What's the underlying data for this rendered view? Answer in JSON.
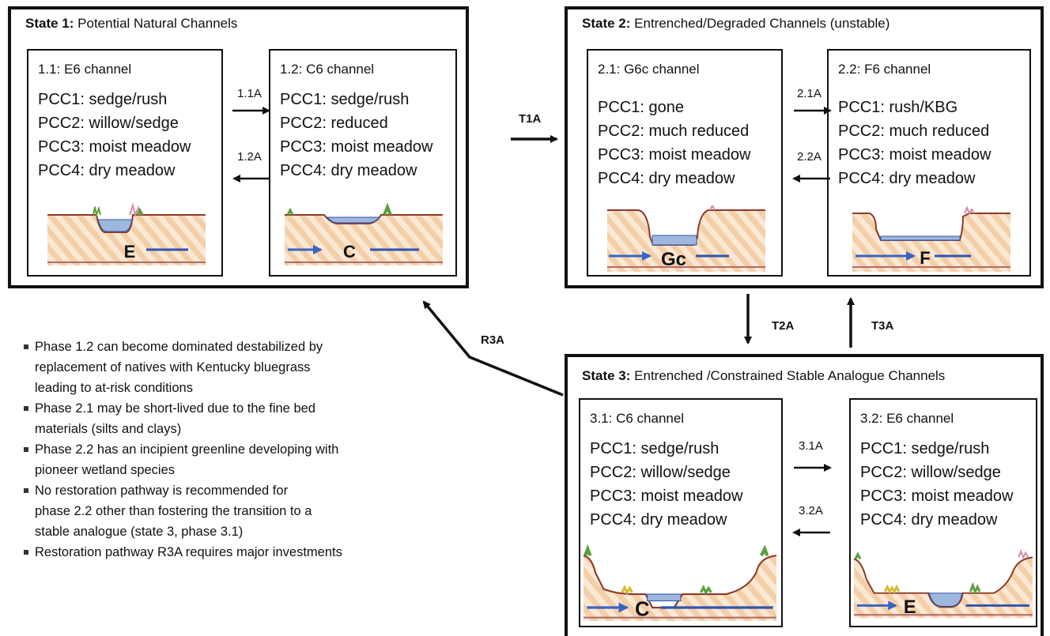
{
  "states": [
    {
      "id": "1",
      "title_bold": "State 1:",
      "title_rest": " Potential Natural Channels"
    },
    {
      "id": "2",
      "title_bold": "State 2:",
      "title_rest": " Entrenched/Degraded Channels (unstable)"
    },
    {
      "id": "3",
      "title_bold": "State 3:",
      "title_rest": " Entrenched /Constrained Stable Analogue Channels"
    }
  ],
  "phases": [
    {
      "id": "1.1",
      "header": "1.1: E6 channel",
      "pcc": [
        "PCC1: sedge/rush",
        "PCC2: willow/sedge",
        "PCC3: moist meadow",
        "PCC4: dry meadow"
      ],
      "channel_letter": "E"
    },
    {
      "id": "1.2",
      "header": "1.2: C6 channel",
      "pcc": [
        "PCC1: sedge/rush",
        "PCC2: reduced",
        "PCC3: moist meadow",
        "PCC4: dry meadow"
      ],
      "channel_letter": "C"
    },
    {
      "id": "2.1",
      "header": "2.1: G6c channel",
      "pcc": [
        "PCC1: gone",
        "PCC2: much reduced",
        "PCC3: moist meadow",
        "PCC4: dry meadow"
      ],
      "channel_letter": "Gc"
    },
    {
      "id": "2.2",
      "header": "2.2: F6 channel",
      "pcc": [
        "PCC1: rush/KBG",
        "PCC2: much reduced",
        "PCC3: moist meadow",
        "PCC4: dry meadow"
      ],
      "channel_letter": "F"
    },
    {
      "id": "3.1",
      "header": "3.1: C6 channel",
      "pcc": [
        "PCC1: sedge/rush",
        "PCC2: willow/sedge",
        "PCC3: moist meadow",
        "PCC4: dry meadow"
      ],
      "channel_letter": "C"
    },
    {
      "id": "3.2",
      "header": "3.2: E6 channel",
      "pcc": [
        "PCC1: sedge/rush",
        "PCC2: willow/sedge",
        "PCC3: moist meadow",
        "PCC4: dry meadow"
      ],
      "channel_letter": "E"
    }
  ],
  "pathways": {
    "p11A": "1.1A",
    "p12A": "1.2A",
    "p21A": "2.1A",
    "p22A": "2.2A",
    "p31A": "3.1A",
    "p32A": "3.2A",
    "T1A": "T1A",
    "T2A": "T2A",
    "T3A": "T3A",
    "R3A": "R3A"
  },
  "notes": [
    [
      "Phase 1.2 can become dominated destabilized by",
      "replacement of natives with Kentucky bluegrass",
      "leading to at-risk conditions"
    ],
    [
      "Phase 2.1 may be short-lived due to the fine bed",
      "materials (silts and clays)"
    ],
    [
      "Phase 2.2 has an incipient greenline developing with",
      "pioneer wetland species"
    ],
    [
      "No restoration pathway is recommended for",
      "phase 2.2 other than fostering the transition to a",
      "stable analogue (state 3, phase 3.1)"
    ],
    [
      "Restoration pathway R3A requires major investments"
    ]
  ],
  "colors": {
    "ground_stripe": "#f6d6b4",
    "ground_line": "#8b3a2a",
    "water": "#9fb6dd",
    "water_line": "#2f55b0",
    "flow_arrow": "#3a63c4",
    "veg_green": "#5a9e3a",
    "veg_yellow": "#d9b833"
  }
}
